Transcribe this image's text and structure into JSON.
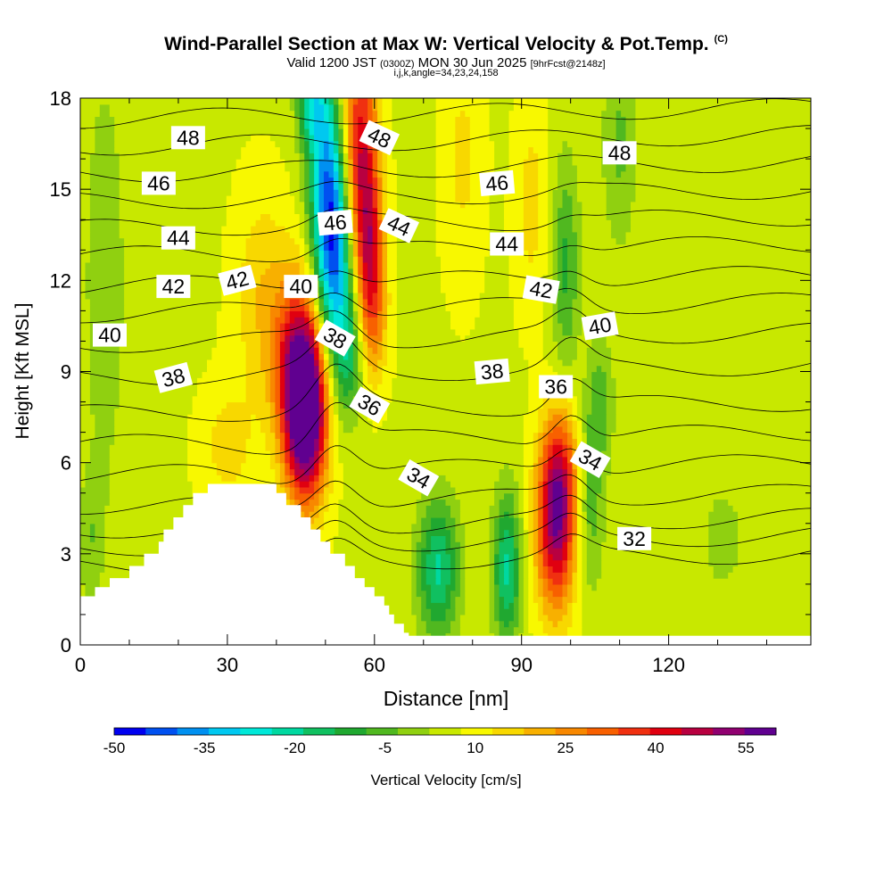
{
  "header": {
    "title": "Wind-Parallel Section at Max W: Vertical Velocity & Pot.Temp.",
    "copyright": "(C)",
    "valid_main": "Valid 1200 JST",
    "valid_zulu": "(0300Z)",
    "valid_date": "MON 30 Jun 2025",
    "forecast": "[9hrFcst@2148z]",
    "indices": "i,j,k,angle=34,23,24,158"
  },
  "chart_data": {
    "type": "heatmap",
    "title": "Wind-Parallel Section at Max W: Vertical Velocity & Pot.Temp.",
    "xlabel": "Distance [nm]",
    "ylabel": "Height [Kft MSL]",
    "xlim": [
      0,
      149
    ],
    "ylim": [
      0,
      18
    ],
    "x_ticks": [
      "0",
      "30",
      "60",
      "90",
      "120"
    ],
    "y_ticks": [
      "0",
      "3",
      "6",
      "9",
      "12",
      "15",
      "18"
    ],
    "colorbar": {
      "label": "Vertical Velocity [cm/s]",
      "min": -50,
      "max": 60,
      "step": 5,
      "tick_labels": [
        "-50",
        "-35",
        "-20",
        "-5",
        "10",
        "25",
        "40",
        "55"
      ],
      "colors": [
        "#0000f0",
        "#0050f0",
        "#0090f0",
        "#00c8f0",
        "#00e8d8",
        "#00d8a0",
        "#10c060",
        "#20a830",
        "#50b820",
        "#90d010",
        "#c8e800",
        "#f8f800",
        "#f8d800",
        "#f8b000",
        "#f88800",
        "#f86000",
        "#f03010",
        "#e00010",
        "#b80040",
        "#900070",
        "#600090"
      ]
    },
    "vertical_velocity_cells": [
      {
        "x": 46,
        "y": 7.6,
        "sx": 3.0,
        "sy": 2.0,
        "w": 60
      },
      {
        "x": 44,
        "y": 9.5,
        "sx": 3.5,
        "sy": 2.0,
        "w": 25
      },
      {
        "x": 97,
        "y": 4.0,
        "sx": 2.8,
        "sy": 2.0,
        "w": 43
      },
      {
        "x": 98,
        "y": 6.0,
        "sx": 2.5,
        "sy": 1.5,
        "w": 15
      },
      {
        "x": 57,
        "y": 16.5,
        "sx": 2.5,
        "sy": 2.5,
        "w": 33
      },
      {
        "x": 59,
        "y": 13.0,
        "sx": 2.0,
        "sy": 2.0,
        "w": 30
      },
      {
        "x": 60,
        "y": 10.5,
        "sx": 2.0,
        "sy": 1.5,
        "w": 12
      },
      {
        "x": 52,
        "y": 12.5,
        "sx": 2.5,
        "sy": 2.5,
        "w": -36
      },
      {
        "x": 50,
        "y": 15.5,
        "sx": 2.5,
        "sy": 2.5,
        "w": -32
      },
      {
        "x": 47,
        "y": 17.8,
        "sx": 2.0,
        "sy": 1.0,
        "w": -22
      },
      {
        "x": 55,
        "y": 9.5,
        "sx": 2.0,
        "sy": 1.5,
        "w": -15
      },
      {
        "x": 73,
        "y": 2.5,
        "sx": 3.0,
        "sy": 1.6,
        "w": -25
      },
      {
        "x": 87,
        "y": 2.5,
        "sx": 2.0,
        "sy": 1.8,
        "w": -25
      },
      {
        "x": 104,
        "y": 4.5,
        "sx": 2.0,
        "sy": 2.0,
        "w": -12
      },
      {
        "x": 99,
        "y": 12.5,
        "sx": 2.0,
        "sy": 2.5,
        "w": -15
      },
      {
        "x": 106,
        "y": 8.0,
        "sx": 2.0,
        "sy": 1.5,
        "w": -12
      },
      {
        "x": 110,
        "y": 16.5,
        "sx": 2.5,
        "sy": 2.5,
        "w": -10
      },
      {
        "x": 5,
        "y": 12.0,
        "sx": 3.0,
        "sy": 5.0,
        "w": -8
      },
      {
        "x": 2,
        "y": 3.5,
        "sx": 2.0,
        "sy": 1.5,
        "w": -8
      },
      {
        "x": 37,
        "y": 11.5,
        "sx": 4.0,
        "sy": 2.5,
        "w": 10
      },
      {
        "x": 30,
        "y": 6.5,
        "sx": 4.0,
        "sy": 1.5,
        "w": 8
      },
      {
        "x": 92,
        "y": 14.5,
        "sx": 2.5,
        "sy": 2.5,
        "w": 8
      },
      {
        "x": 78,
        "y": 16.0,
        "sx": 3.0,
        "sy": 3.0,
        "w": 7
      },
      {
        "x": 131,
        "y": 3.5,
        "sx": 5.0,
        "sy": 2.0,
        "w": -5
      }
    ],
    "terrain_kft": [
      [
        0,
        1.6
      ],
      [
        3,
        1.6
      ],
      [
        3,
        1.9
      ],
      [
        6,
        1.9
      ],
      [
        6,
        2.2
      ],
      [
        10,
        2.2
      ],
      [
        10,
        2.6
      ],
      [
        13,
        2.6
      ],
      [
        13,
        3.0
      ],
      [
        16,
        3.0
      ],
      [
        16,
        3.4
      ],
      [
        17,
        3.4
      ],
      [
        17,
        3.8
      ],
      [
        19,
        3.8
      ],
      [
        19,
        4.2
      ],
      [
        21,
        4.2
      ],
      [
        21,
        4.6
      ],
      [
        23,
        4.6
      ],
      [
        23,
        5.0
      ],
      [
        26,
        5.0
      ],
      [
        26,
        5.3
      ],
      [
        40,
        5.3
      ],
      [
        40,
        5.0
      ],
      [
        42,
        5.0
      ],
      [
        42,
        4.6
      ],
      [
        45,
        4.6
      ],
      [
        45,
        4.2
      ],
      [
        47,
        4.2
      ],
      [
        47,
        3.8
      ],
      [
        49,
        3.8
      ],
      [
        49,
        3.4
      ],
      [
        51,
        3.4
      ],
      [
        51,
        3.0
      ],
      [
        54,
        3.0
      ],
      [
        54,
        2.6
      ],
      [
        56,
        2.6
      ],
      [
        56,
        2.2
      ],
      [
        58,
        2.2
      ],
      [
        58,
        1.9
      ],
      [
        60,
        1.9
      ],
      [
        60,
        1.6
      ],
      [
        62,
        1.6
      ],
      [
        62,
        1.3
      ],
      [
        63,
        1.3
      ],
      [
        63,
        1.0
      ],
      [
        64,
        1.0
      ],
      [
        64,
        0.7
      ],
      [
        66,
        0.7
      ],
      [
        66,
        0.4
      ],
      [
        67,
        0.4
      ],
      [
        67,
        0.3
      ],
      [
        149,
        0.3
      ],
      [
        149,
        0
      ],
      [
        0,
        0
      ]
    ],
    "potential_temperature": {
      "levels": [
        32,
        33,
        34,
        35,
        36,
        37,
        38,
        39,
        40,
        41,
        42,
        43,
        44,
        45,
        46,
        47,
        48,
        49
      ],
      "base_height_kft": [
        2.6,
        3.2,
        3.8,
        4.6,
        5.6,
        6.6,
        7.6,
        8.8,
        9.9,
        10.9,
        11.8,
        12.8,
        13.7,
        14.6,
        15.5,
        16.4,
        17.3,
        18.2
      ],
      "labels": [
        {
          "text": "48",
          "x": 22,
          "y": 16.7,
          "angle": 0
        },
        {
          "text": "48",
          "x": 61,
          "y": 16.7,
          "angle": 25
        },
        {
          "text": "48",
          "x": 110,
          "y": 16.2,
          "angle": 0
        },
        {
          "text": "46",
          "x": 16,
          "y": 15.2,
          "angle": 0
        },
        {
          "text": "46",
          "x": 85,
          "y": 15.2,
          "angle": -5
        },
        {
          "text": "46",
          "x": 52,
          "y": 13.9,
          "angle": -5
        },
        {
          "text": "44",
          "x": 20,
          "y": 13.4,
          "angle": 0
        },
        {
          "text": "44",
          "x": 65,
          "y": 13.8,
          "angle": 25
        },
        {
          "text": "44",
          "x": 87,
          "y": 13.2,
          "angle": 0
        },
        {
          "text": "42",
          "x": 19,
          "y": 11.8,
          "angle": 0
        },
        {
          "text": "42",
          "x": 32,
          "y": 12.0,
          "angle": -15
        },
        {
          "text": "42",
          "x": 94,
          "y": 11.7,
          "angle": 10
        },
        {
          "text": "40",
          "x": 6,
          "y": 10.2,
          "angle": 0
        },
        {
          "text": "40",
          "x": 45,
          "y": 11.8,
          "angle": 0
        },
        {
          "text": "40",
          "x": 106,
          "y": 10.5,
          "angle": -10
        },
        {
          "text": "38",
          "x": 19,
          "y": 8.8,
          "angle": -15
        },
        {
          "text": "38",
          "x": 52,
          "y": 10.1,
          "angle": 30
        },
        {
          "text": "38",
          "x": 84,
          "y": 9.0,
          "angle": -5
        },
        {
          "text": "36",
          "x": 59,
          "y": 7.9,
          "angle": 30
        },
        {
          "text": "36",
          "x": 97,
          "y": 8.5,
          "angle": 0
        },
        {
          "text": "34",
          "x": 69,
          "y": 5.5,
          "angle": 30
        },
        {
          "text": "34",
          "x": 104,
          "y": 6.1,
          "angle": 30
        },
        {
          "text": "32",
          "x": 113,
          "y": 3.5,
          "angle": 0
        }
      ]
    }
  }
}
